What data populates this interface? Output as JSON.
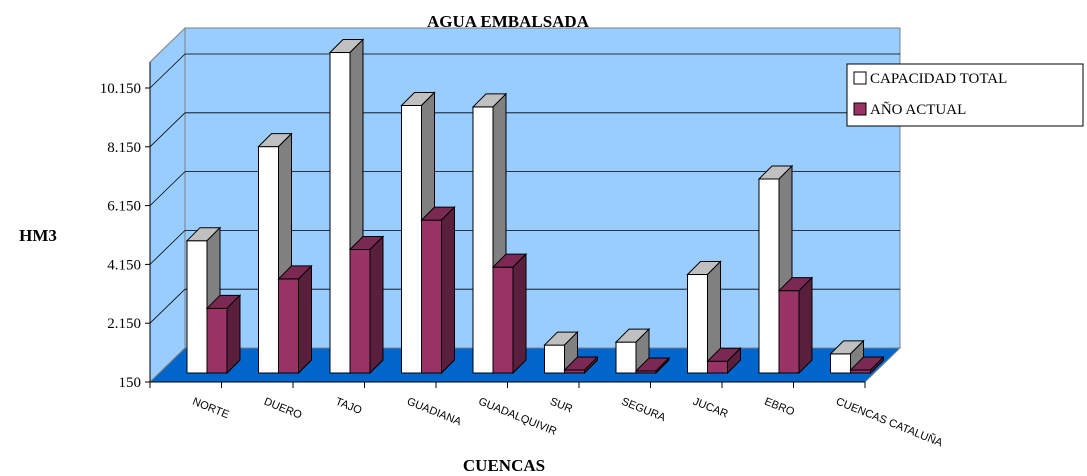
{
  "chart_data": {
    "type": "bar",
    "title": "AGUA EMBALSADA",
    "xlabel": "CUENCAS",
    "ylabel": "HM3",
    "categories": [
      "NORTE",
      "DUERO",
      "TAJO",
      "GUADIANA",
      "GUADALQUIVIR",
      "SUR",
      "SEGURA",
      "JUCAR",
      "EBRO",
      "CUENCAS  CATALUÑA"
    ],
    "series": [
      {
        "name": "CAPACIDAD TOTAL",
        "values": [
          4650,
          7850,
          11050,
          9250,
          9200,
          1100,
          1200,
          3500,
          6750,
          800
        ]
      },
      {
        "name": "AÑO ACTUAL",
        "values": [
          2350,
          3350,
          4350,
          5350,
          3750,
          250,
          150,
          550,
          2950,
          250
        ]
      }
    ],
    "yticks": [
      "150",
      "2.150",
      "4.150",
      "6.150",
      "8.150",
      "10.150"
    ],
    "ytick_values": [
      150,
      2150,
      4150,
      6150,
      8150,
      10150
    ],
    "ylim": [
      150,
      10150
    ],
    "grid": true,
    "legend_position": "top-right",
    "colors": {
      "wall": "#99ccff",
      "floor": "#0066cc",
      "series_capacity": "#ffffff",
      "series_capacity_side": "#808080",
      "series_capacity_top": "#c0c0c0",
      "series_current": "#993366",
      "series_current_side": "#5a1f3c",
      "series_current_top": "#7a2a52"
    }
  }
}
